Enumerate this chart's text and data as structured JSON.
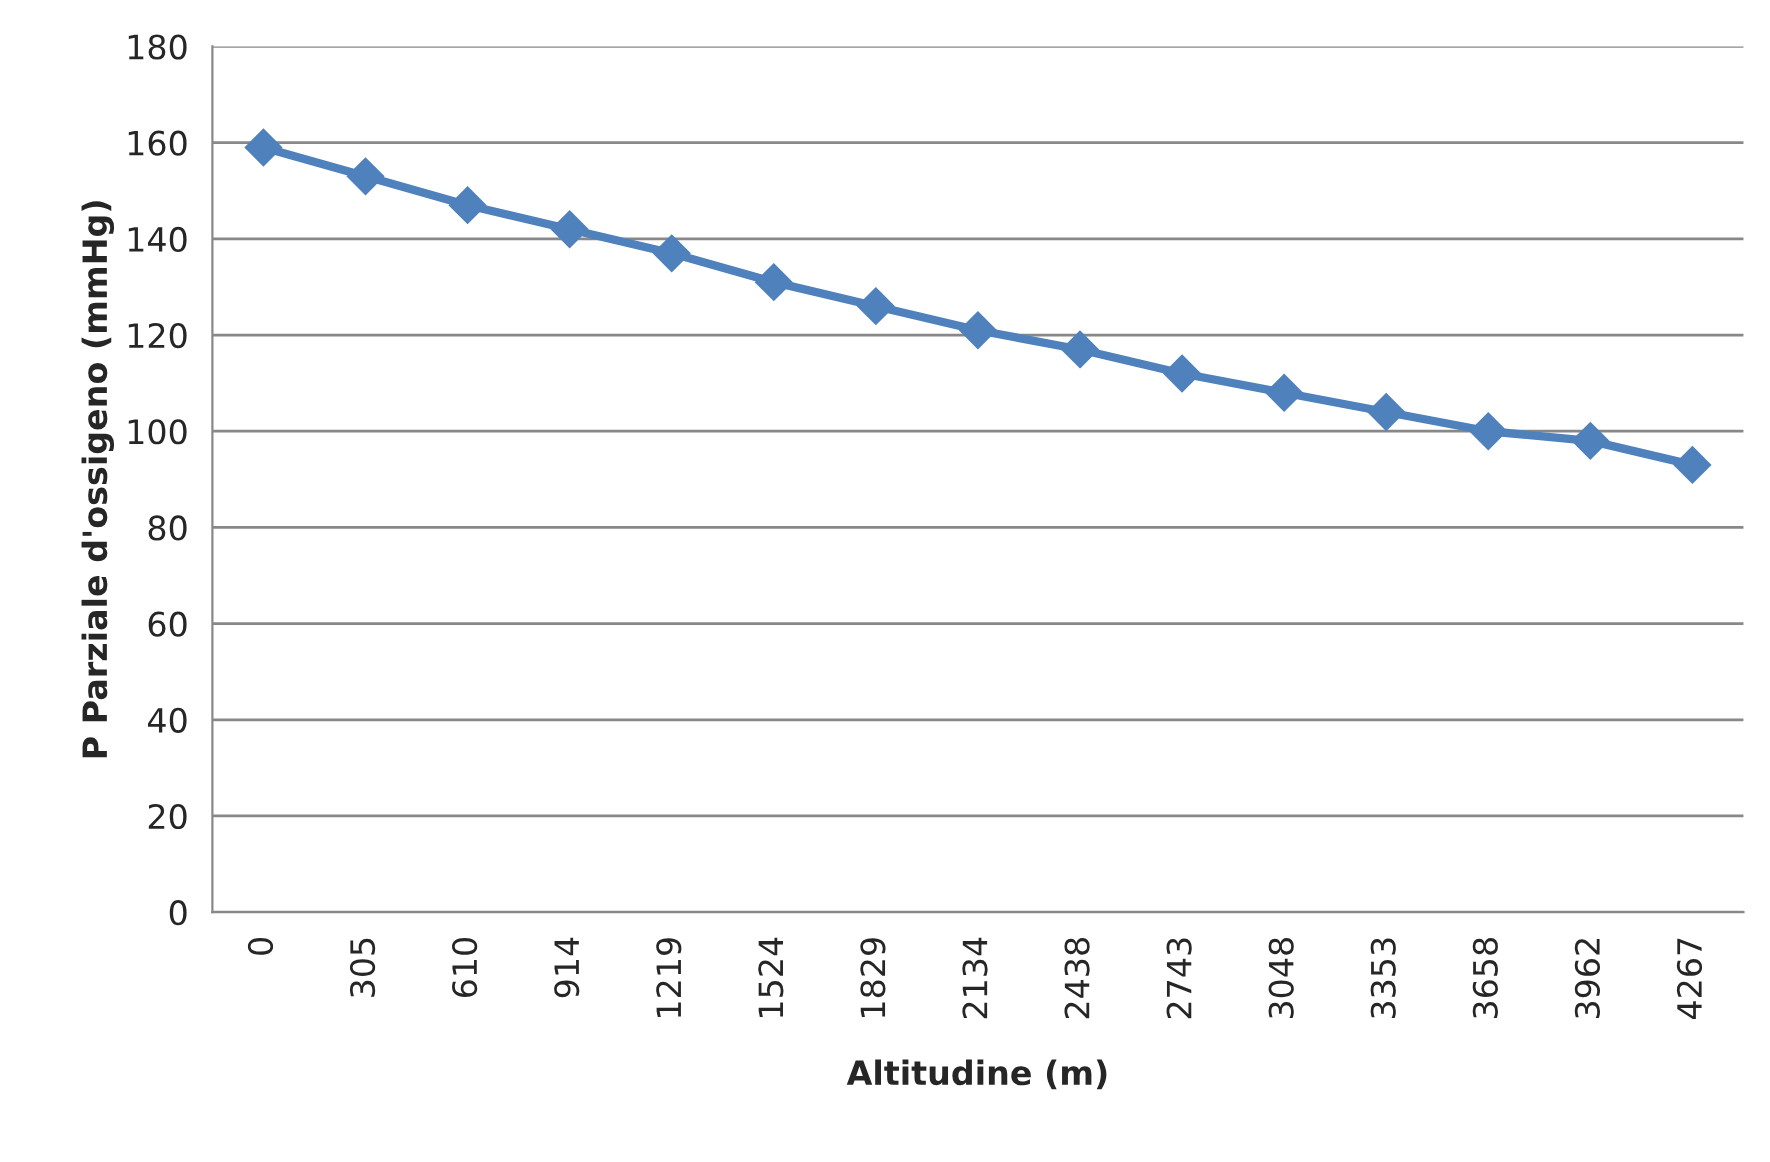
{
  "chart_data": {
    "type": "line",
    "xlabel": "Altitudine (m)",
    "ylabel": "P Parziale d'ossigeno (mmHg)",
    "categories": [
      "0",
      "305",
      "610",
      "914",
      "1219",
      "1524",
      "1829",
      "2134",
      "2438",
      "2743",
      "3048",
      "3353",
      "3658",
      "3962",
      "4267"
    ],
    "series": [
      {
        "color": "#4f81bd",
        "values": [
          159,
          153,
          147,
          142,
          137,
          131,
          126,
          121,
          117,
          112,
          108,
          104,
          100,
          98,
          93
        ]
      }
    ],
    "ylim": [
      0,
      180
    ],
    "yticks": [
      0,
      20,
      40,
      60,
      80,
      100,
      120,
      140,
      160,
      180
    ],
    "grid": "y",
    "marker": "diamond",
    "line_style": "solid"
  }
}
